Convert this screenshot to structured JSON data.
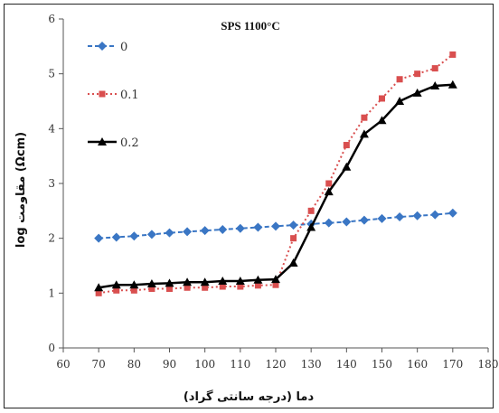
{
  "chart_data": {
    "type": "line",
    "title": "SPS 1100°C",
    "xlabel": "دما (درجه سانتی گراد)",
    "ylabel": "log مقاومت (Ωcm)",
    "xlim": [
      60,
      180
    ],
    "ylim": [
      0,
      6
    ],
    "xticks": [
      60,
      70,
      80,
      90,
      100,
      110,
      120,
      130,
      140,
      150,
      160,
      170,
      180
    ],
    "yticks": [
      0,
      1,
      2,
      3,
      4,
      5,
      6
    ],
    "grid": false,
    "legend_position": "top-left",
    "series": [
      {
        "name": "0",
        "color": "#3a76c4",
        "marker": "diamond",
        "line": "dashed",
        "x": [
          70,
          75,
          80,
          85,
          90,
          95,
          100,
          105,
          110,
          115,
          120,
          125,
          130,
          135,
          140,
          145,
          150,
          155,
          160,
          165,
          170
        ],
        "y": [
          2.0,
          2.02,
          2.04,
          2.07,
          2.1,
          2.12,
          2.14,
          2.16,
          2.18,
          2.2,
          2.22,
          2.24,
          2.26,
          2.28,
          2.3,
          2.33,
          2.36,
          2.39,
          2.41,
          2.43,
          2.46
        ]
      },
      {
        "name": "0.1",
        "color": "#d94f4f",
        "marker": "square",
        "line": "dotted",
        "x": [
          70,
          75,
          80,
          85,
          90,
          95,
          100,
          105,
          110,
          115,
          120,
          125,
          130,
          135,
          140,
          145,
          150,
          155,
          160,
          165,
          170
        ],
        "y": [
          1.0,
          1.05,
          1.05,
          1.08,
          1.08,
          1.1,
          1.1,
          1.12,
          1.12,
          1.14,
          1.15,
          2.0,
          2.5,
          3.0,
          3.7,
          4.2,
          4.55,
          4.9,
          5.0,
          5.1,
          5.35
        ]
      },
      {
        "name": "0.2",
        "color": "#000000",
        "marker": "triangle",
        "line": "solid",
        "x": [
          70,
          75,
          80,
          85,
          90,
          95,
          100,
          105,
          110,
          115,
          120,
          125,
          130,
          135,
          140,
          145,
          150,
          155,
          160,
          165,
          170
        ],
        "y": [
          1.1,
          1.15,
          1.15,
          1.17,
          1.18,
          1.2,
          1.2,
          1.22,
          1.22,
          1.24,
          1.25,
          1.55,
          2.2,
          2.85,
          3.3,
          3.9,
          4.15,
          4.5,
          4.65,
          4.78,
          4.8
        ]
      }
    ]
  }
}
